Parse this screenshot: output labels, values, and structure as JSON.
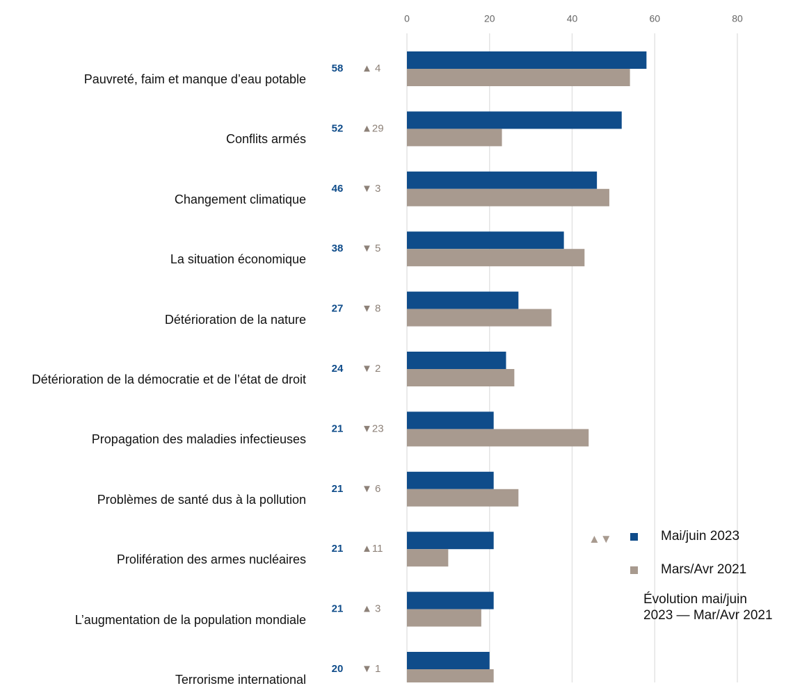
{
  "chart_data": {
    "type": "hbar",
    "categories": [
      "Pauvreté, faim et manque d’eau potable",
      "Conflits armés",
      "Changement climatique",
      "La situation économique",
      "Détérioration de la nature",
      "Détérioration de la démocratie et de l’état de droit",
      "Propagation des maladies infectieuses",
      "Problèmes de santé dus à la pollution",
      "Prolifération des armes nucléaires",
      "L’augmentation de la population mondiale",
      "Terrorisme international"
    ],
    "series": [
      {
        "name": "Mai/juin 2023",
        "color": "#0f4c8a",
        "values": [
          58,
          52,
          46,
          38,
          27,
          24,
          21,
          21,
          21,
          21,
          20
        ]
      },
      {
        "name": "Mars/Avr 2021",
        "color": "#a89a8f",
        "values": [
          54,
          23,
          49,
          43,
          35,
          26,
          44,
          27,
          10,
          18,
          21
        ]
      }
    ],
    "change_labels": [
      "▲ 4",
      "▲29",
      "▼ 3",
      "▼ 5",
      "▼ 8",
      "▼ 2",
      "▼23",
      "▼ 6",
      "▲11",
      "▲ 3",
      "▼ 1"
    ],
    "legend_change_marker": "▲▼",
    "legend_change_text": "Évolution mai/juin 2023 — Mar/Avr 2021",
    "xlim": [
      0,
      80
    ],
    "xticks": [
      0,
      20,
      40,
      60,
      80
    ],
    "grid": true,
    "legend": "lower right"
  }
}
